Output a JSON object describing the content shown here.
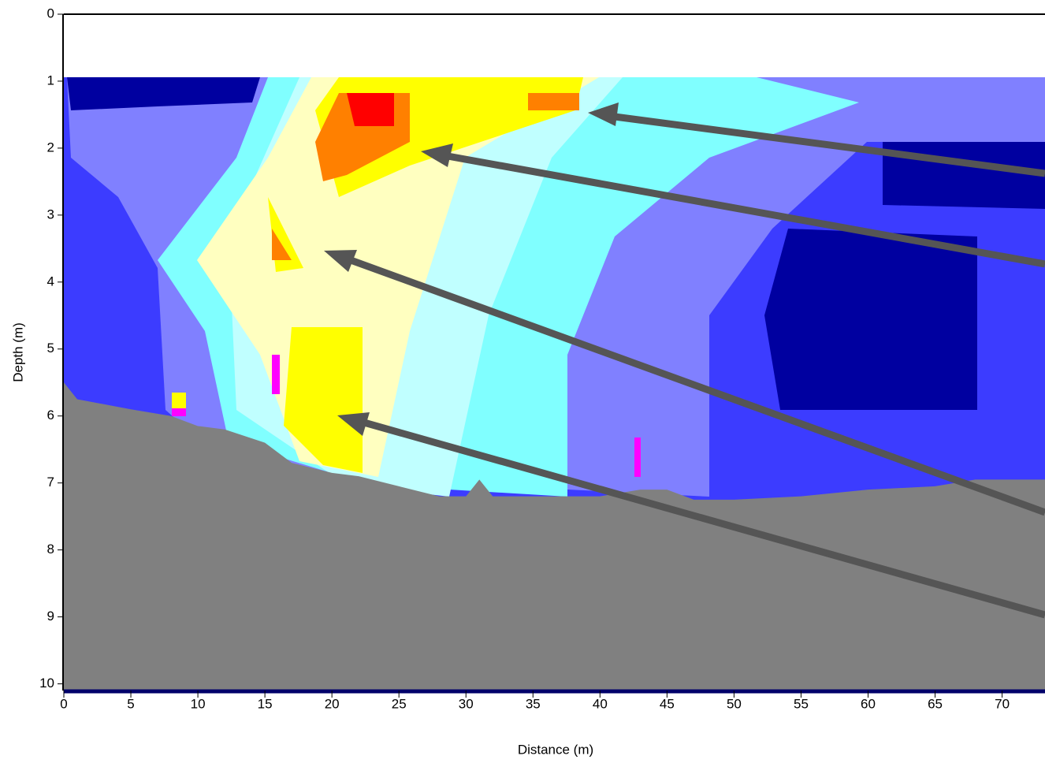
{
  "chart_data": {
    "type": "area",
    "x_label": "Distance (m)",
    "y_label": "Depth (m)",
    "x": [
      0,
      1,
      5,
      8,
      10,
      12,
      15,
      16,
      17,
      20,
      22,
      25,
      28,
      30,
      31,
      32,
      35,
      40,
      43,
      45,
      47,
      50,
      55,
      60,
      65,
      68,
      70,
      73.2
    ],
    "values": [
      5.5,
      5.75,
      5.9,
      6.0,
      6.15,
      6.2,
      6.4,
      6.55,
      6.7,
      6.85,
      6.9,
      7.05,
      7.2,
      7.2,
      6.95,
      7.2,
      7.2,
      7.2,
      7.1,
      7.1,
      7.25,
      7.25,
      7.2,
      7.1,
      7.05,
      6.95,
      6.95,
      6.95
    ],
    "color": "#808080",
    "xlim": [
      0,
      73.2
    ],
    "ylim": [
      0,
      10.1
    ],
    "y_inverted": true,
    "xticks": [
      0,
      5,
      10,
      15,
      20,
      25,
      30,
      35,
      40,
      45,
      50,
      55,
      60,
      65,
      70
    ],
    "yticks": [
      0,
      1,
      2,
      3,
      4,
      5,
      6,
      7,
      8,
      9,
      10
    ],
    "grid": true
  }
}
